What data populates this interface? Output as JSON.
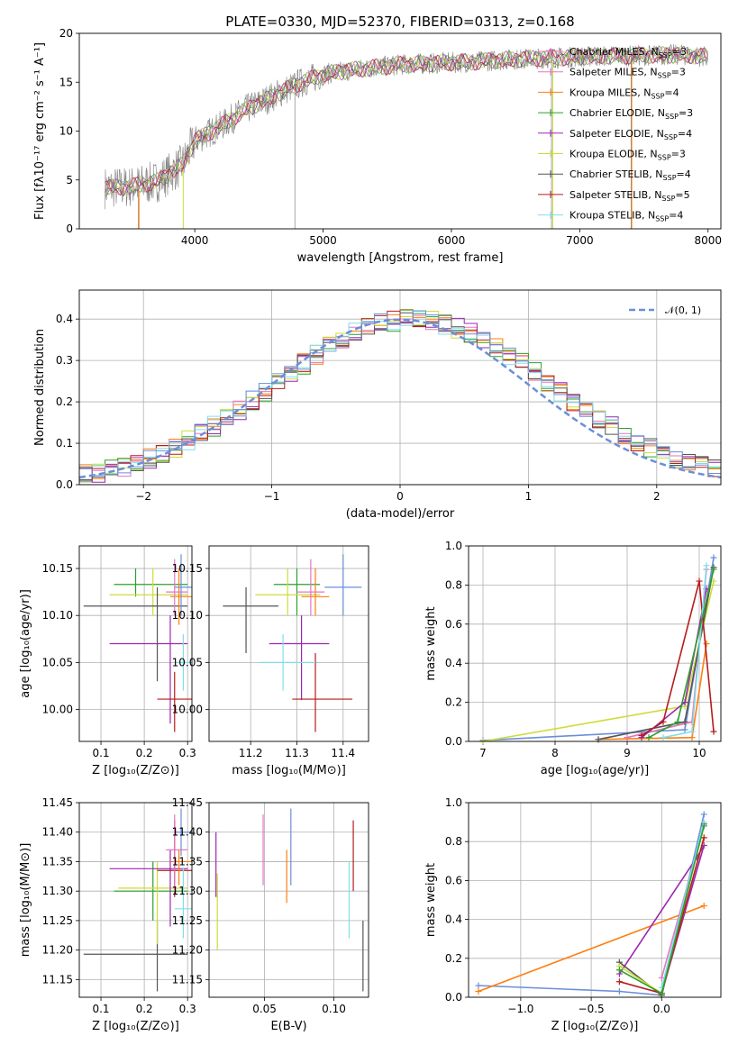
{
  "series_colors": [
    "#e24a33",
    "#348abd",
    "#988ed5",
    "#777777",
    "#fbc15e",
    "#8eba42",
    "#ffb5b8",
    "#1f77b4",
    "#ff7f0e",
    "#2ca02c"
  ],
  "palette": {
    "chabrier_miles": "#ff7f0e",
    "salpeter_miles": "#e377c2",
    "kroupa_miles": "#ff7f0e",
    "chabrier_elodie": "#2ca02c",
    "salpeter_elodie": "#9c27b0",
    "kroupa_elodie": "#cddc39",
    "chabrier_stelib": "#555555",
    "salpeter_stelib": "#b71c1c",
    "kroupa_stelib": "#80deea"
  },
  "chart_data": [
    {
      "id": "spectrum",
      "type": "line",
      "title": "PLATE=0330, MJD=52370, FIBERID=0313, z=0.168",
      "xlabel": "wavelength [Angstrom, rest frame]",
      "ylabel": "Flux [fλ10⁻¹⁷ erg cm⁻² s⁻¹ A⁻¹]",
      "xlim": [
        3100,
        8100
      ],
      "ylim": [
        0,
        20
      ],
      "xticks": [
        4000,
        5000,
        6000,
        7000,
        8000
      ],
      "yticks": [
        0,
        5,
        10,
        15,
        20
      ],
      "legend_position": "right",
      "legend": [
        {
          "label": "Chabrier MILES, N",
          "sub": "SSP",
          "suffix": "=3",
          "color": "#e377c2"
        },
        {
          "label": "Salpeter MILES, N",
          "sub": "SSP",
          "suffix": "=3",
          "color": "#e377c2"
        },
        {
          "label": "Kroupa MILES, N",
          "sub": "SSP",
          "suffix": "=4",
          "color": "#ff7f0e"
        },
        {
          "label": "Chabrier ELODIE, N",
          "sub": "SSP",
          "suffix": "=3",
          "color": "#2ca02c"
        },
        {
          "label": "Salpeter ELODIE, N",
          "sub": "SSP",
          "suffix": "=4",
          "color": "#9c27b0"
        },
        {
          "label": "Kroupa ELODIE, N",
          "sub": "SSP",
          "suffix": "=3",
          "color": "#cddc39"
        },
        {
          "label": "Chabrier STELIB, N",
          "sub": "SSP",
          "suffix": "=4",
          "color": "#555555"
        },
        {
          "label": "Salpeter STELIB, N",
          "sub": "SSP",
          "suffix": "=5",
          "color": "#b71c1c"
        },
        {
          "label": "Kroupa STELIB, N",
          "sub": "SSP",
          "suffix": "=4",
          "color": "#80deea"
        }
      ],
      "continuum": {
        "x": [
          3300,
          3500,
          3700,
          3900,
          4000,
          4200,
          4400,
          4600,
          4800,
          5000,
          5200,
          5400,
          5600,
          5800,
          6000,
          6200,
          6400,
          6600,
          6800,
          7000,
          7200,
          7400,
          7600,
          7800,
          8000
        ],
        "y": [
          4.2,
          4.3,
          4.8,
          6.5,
          9.0,
          10.5,
          12.2,
          13.5,
          14.8,
          15.8,
          16.2,
          16.5,
          16.8,
          16.9,
          17.0,
          17.1,
          17.3,
          17.4,
          17.5,
          17.6,
          17.7,
          17.7,
          17.8,
          17.8,
          17.6
        ]
      }
    },
    {
      "id": "residuals",
      "type": "histogram",
      "xlabel": "(data-model)/error",
      "ylabel": "Normed distribution",
      "xlim": [
        -2.5,
        2.5
      ],
      "ylim": [
        0,
        0.47
      ],
      "xticks": [
        -2,
        -1,
        0,
        1,
        2
      ],
      "yticks": [
        0.0,
        0.1,
        0.2,
        0.3,
        0.4
      ],
      "ytick_labels": [
        "0.0",
        "0.1",
        "0.2",
        "0.3",
        "0.4"
      ],
      "xtick_labels": [
        "−2",
        "−1",
        "0",
        "1",
        "2"
      ],
      "legend": [
        {
          "label": "𝒩(0, 1)",
          "color": "#6a8fd8",
          "style": "dashed"
        }
      ],
      "legend_position": "top-right",
      "bin_width": 0.1
    },
    {
      "id": "age-vs-z",
      "type": "errorbar",
      "xlabel": "Z [log₁₀(Z/Z⊙)]",
      "ylabel": "age  [log₁₀(age/yr)]",
      "xlim": [
        0.05,
        0.31
      ],
      "ylim": [
        9.966,
        10.174
      ],
      "xticks": [
        0.1,
        0.2,
        0.3
      ],
      "xtick_labels": [
        "0.1",
        "0.2",
        "0.3"
      ],
      "yticks": [
        10.0,
        10.05,
        10.1,
        10.15
      ],
      "ytick_labels": [
        "10.00",
        "10.05",
        "10.10",
        "10.15"
      ],
      "points": [
        {
          "x": 0.18,
          "y": 10.133,
          "xerr": [
            0.13,
            0.3
          ],
          "yerr": [
            10.12,
            10.15
          ],
          "color": "#2ca02c"
        },
        {
          "x": 0.22,
          "y": 10.122,
          "xerr": [
            0.12,
            0.3
          ],
          "yerr": [
            10.1,
            10.15
          ],
          "color": "#cddc39"
        },
        {
          "x": 0.23,
          "y": 10.11,
          "xerr": [
            0.06,
            0.3
          ],
          "yerr": [
            10.03,
            10.13
          ],
          "color": "#555555"
        },
        {
          "x": 0.26,
          "y": 10.07,
          "xerr": [
            0.12,
            0.3
          ],
          "yerr": [
            9.985,
            10.1
          ],
          "color": "#9c27b0"
        },
        {
          "x": 0.27,
          "y": 10.011,
          "xerr": [
            0.23,
            0.31
          ],
          "yerr": [
            9.976,
            10.04
          ],
          "color": "#b71c1c"
        },
        {
          "x": 0.28,
          "y": 10.12,
          "xerr": [
            0.26,
            0.31
          ],
          "yerr": [
            10.09,
            10.15
          ],
          "color": "#ff7f0e"
        },
        {
          "x": 0.29,
          "y": 10.05,
          "xerr": [
            0.27,
            0.31
          ],
          "yerr": [
            10.02,
            10.08
          ],
          "color": "#80deea"
        },
        {
          "x": 0.285,
          "y": 10.13,
          "xerr": [
            0.27,
            0.31
          ],
          "yerr": [
            10.1,
            10.165
          ],
          "color": "#6a8fd8"
        },
        {
          "x": 0.27,
          "y": 10.125,
          "xerr": [
            0.25,
            0.3
          ],
          "yerr": [
            10.1,
            10.16
          ],
          "color": "#e377c2"
        }
      ]
    },
    {
      "id": "age-vs-mass",
      "type": "errorbar",
      "xlabel": "mass [log₁₀(M/M⊙)]",
      "xlim": [
        11.11,
        11.455
      ],
      "ylim": [
        9.966,
        10.174
      ],
      "xticks": [
        11.2,
        11.3,
        11.4
      ],
      "xtick_labels": [
        "11.2",
        "11.3",
        "11.4"
      ],
      "yticks": [
        10.0,
        10.05,
        10.1,
        10.15
      ],
      "ytick_labels": [
        "10.00",
        "10.05",
        "10.10",
        "10.15"
      ],
      "points": [
        {
          "x": 11.3,
          "y": 10.133,
          "xerr": [
            11.25,
            11.35
          ],
          "yerr": [
            10.1,
            10.15
          ],
          "color": "#2ca02c"
        },
        {
          "x": 11.28,
          "y": 10.122,
          "xerr": [
            11.21,
            11.35
          ],
          "yerr": [
            10.1,
            10.15
          ],
          "color": "#cddc39"
        },
        {
          "x": 11.19,
          "y": 10.11,
          "xerr": [
            11.14,
            11.26
          ],
          "yerr": [
            10.06,
            10.13
          ],
          "color": "#555555"
        },
        {
          "x": 11.31,
          "y": 10.07,
          "xerr": [
            11.24,
            11.37
          ],
          "yerr": [
            10.01,
            10.1
          ],
          "color": "#9c27b0"
        },
        {
          "x": 11.34,
          "y": 10.011,
          "xerr": [
            11.29,
            11.42
          ],
          "yerr": [
            9.976,
            10.06
          ],
          "color": "#b71c1c"
        },
        {
          "x": 11.34,
          "y": 10.12,
          "xerr": [
            11.31,
            11.37
          ],
          "yerr": [
            10.1,
            10.15
          ],
          "color": "#ff7f0e"
        },
        {
          "x": 11.27,
          "y": 10.05,
          "xerr": [
            11.22,
            11.34
          ],
          "yerr": [
            10.02,
            10.08
          ],
          "color": "#80deea"
        },
        {
          "x": 11.4,
          "y": 10.13,
          "xerr": [
            11.36,
            11.44
          ],
          "yerr": [
            10.1,
            10.165
          ],
          "color": "#6a8fd8"
        },
        {
          "x": 11.33,
          "y": 10.125,
          "xerr": [
            11.3,
            11.36
          ],
          "yerr": [
            10.1,
            10.16
          ],
          "color": "#e377c2"
        }
      ]
    },
    {
      "id": "massweight-vs-age",
      "type": "line",
      "xlabel": "age  [log₁₀(age/yr)]",
      "ylabel": "mass weight",
      "xlim": [
        6.8,
        10.3
      ],
      "ylim": [
        0,
        1
      ],
      "xticks": [
        7,
        8,
        9,
        10
      ],
      "xtick_labels": [
        "7",
        "8",
        "9",
        "10"
      ],
      "yticks": [
        0.0,
        0.2,
        0.4,
        0.6,
        0.8,
        1.0
      ],
      "ytick_labels": [
        "0.0",
        "0.2",
        "0.4",
        "0.6",
        "0.8",
        "1.0"
      ],
      "series": [
        {
          "color": "#6a8fd8",
          "x": [
            7.0,
            9.8,
            10.2
          ],
          "y": [
            0.005,
            0.06,
            0.94
          ]
        },
        {
          "color": "#cddc39",
          "x": [
            7.0,
            9.8,
            10.2
          ],
          "y": [
            0.0,
            0.18,
            0.82
          ]
        },
        {
          "color": "#e377c2",
          "x": [
            9.0,
            9.9,
            10.1
          ],
          "y": [
            0.02,
            0.1,
            0.88
          ]
        },
        {
          "color": "#ff7f0e",
          "x": [
            8.6,
            9.9,
            10.1
          ],
          "y": [
            0.01,
            0.02,
            0.5
          ]
        },
        {
          "color": "#9c27b0",
          "x": [
            9.2,
            9.8,
            10.1
          ],
          "y": [
            0.02,
            0.2,
            0.78
          ]
        },
        {
          "color": "#555555",
          "x": [
            8.6,
            9.8,
            10.2
          ],
          "y": [
            0.01,
            0.1,
            0.89
          ]
        },
        {
          "color": "#b71c1c",
          "x": [
            9.2,
            9.5,
            10.0,
            10.2
          ],
          "y": [
            0.03,
            0.1,
            0.82,
            0.05
          ]
        },
        {
          "color": "#80deea",
          "x": [
            9.5,
            9.9,
            10.1
          ],
          "y": [
            0.02,
            0.05,
            0.9
          ]
        },
        {
          "color": "#2ca02c",
          "x": [
            9.3,
            9.7,
            10.2
          ],
          "y": [
            0.02,
            0.1,
            0.88
          ]
        }
      ]
    },
    {
      "id": "mass-vs-z",
      "type": "errorbar",
      "xlabel": "Z [log₁₀(Z/Z⊙)]",
      "ylabel": "mass [log₁₀(M/M⊙)]",
      "xlim": [
        0.05,
        0.31
      ],
      "ylim": [
        11.12,
        11.45
      ],
      "xticks": [
        0.1,
        0.2,
        0.3
      ],
      "xtick_labels": [
        "0.1",
        "0.2",
        "0.3"
      ],
      "yticks": [
        11.15,
        11.2,
        11.25,
        11.3,
        11.35,
        11.4,
        11.45
      ],
      "ytick_labels": [
        "11.15",
        "11.20",
        "11.25",
        "11.30",
        "11.35",
        "11.40",
        "11.45"
      ],
      "points": [
        {
          "x": 0.23,
          "y": 11.193,
          "xerr": [
            0.06,
            0.3
          ],
          "yerr": [
            11.13,
            11.25
          ],
          "color": "#555555"
        },
        {
          "x": 0.22,
          "y": 11.3,
          "xerr": [
            0.13,
            0.3
          ],
          "yerr": [
            11.25,
            11.35
          ],
          "color": "#2ca02c"
        },
        {
          "x": 0.23,
          "y": 11.305,
          "xerr": [
            0.14,
            0.3
          ],
          "yerr": [
            11.21,
            11.35
          ],
          "color": "#cddc39"
        },
        {
          "x": 0.26,
          "y": 11.338,
          "xerr": [
            0.12,
            0.3
          ],
          "yerr": [
            11.24,
            11.37
          ],
          "color": "#9c27b0"
        },
        {
          "x": 0.27,
          "y": 11.335,
          "xerr": [
            0.23,
            0.31
          ],
          "yerr": [
            11.29,
            11.42
          ],
          "color": "#b71c1c"
        },
        {
          "x": 0.28,
          "y": 11.35,
          "xerr": [
            0.26,
            0.31
          ],
          "yerr": [
            11.31,
            11.37
          ],
          "color": "#ff7f0e"
        },
        {
          "x": 0.29,
          "y": 11.27,
          "xerr": [
            0.27,
            0.31
          ],
          "yerr": [
            11.22,
            11.34
          ],
          "color": "#80deea"
        },
        {
          "x": 0.285,
          "y": 11.4,
          "xerr": [
            0.27,
            0.31
          ],
          "yerr": [
            11.36,
            11.44
          ],
          "color": "#6a8fd8"
        },
        {
          "x": 0.27,
          "y": 11.37,
          "xerr": [
            0.25,
            0.3
          ],
          "yerr": [
            11.3,
            11.43
          ],
          "color": "#e377c2"
        }
      ]
    },
    {
      "id": "mass-vs-ebv",
      "type": "errorbar",
      "xlabel": "E(B-V)",
      "xlim": [
        0.01,
        0.125
      ],
      "ylim": [
        11.12,
        11.45
      ],
      "xticks": [
        0.05,
        0.1
      ],
      "xtick_labels": [
        "0.05",
        "0.10"
      ],
      "yticks": [
        11.15,
        11.2,
        11.25,
        11.3,
        11.35,
        11.4,
        11.45
      ],
      "ytick_labels": [
        "11.15",
        "11.20",
        "11.25",
        "11.30",
        "11.35",
        "11.40",
        "11.45"
      ],
      "points": [
        {
          "x": 0.015,
          "y": 11.34,
          "yerr": [
            11.29,
            11.4
          ],
          "color": "#9c27b0"
        },
        {
          "x": 0.016,
          "y": 11.26,
          "yerr": [
            11.2,
            11.33
          ],
          "color": "#cddc39"
        },
        {
          "x": 0.049,
          "y": 11.37,
          "yerr": [
            11.31,
            11.43
          ],
          "color": "#e377c2"
        },
        {
          "x": 0.066,
          "y": 11.33,
          "yerr": [
            11.28,
            11.37
          ],
          "color": "#ff7f0e"
        },
        {
          "x": 0.069,
          "y": 11.38,
          "yerr": [
            11.31,
            11.44
          ],
          "color": "#6a8fd8"
        },
        {
          "x": 0.111,
          "y": 11.29,
          "yerr": [
            11.22,
            11.35
          ],
          "color": "#80deea"
        },
        {
          "x": 0.114,
          "y": 11.36,
          "yerr": [
            11.3,
            11.42
          ],
          "color": "#b71c1c"
        },
        {
          "x": 0.121,
          "y": 11.19,
          "yerr": [
            11.13,
            11.25
          ],
          "color": "#555555"
        }
      ]
    },
    {
      "id": "massweight-vs-z",
      "type": "line",
      "xlabel": "Z [log₁₀(Z/Z⊙)]",
      "ylabel": "mass weight",
      "xlim": [
        -1.37,
        0.42
      ],
      "ylim": [
        0,
        1
      ],
      "xticks": [
        -1.0,
        -0.5,
        0.0
      ],
      "xtick_labels": [
        "−1.0",
        "−0.5",
        "0.0"
      ],
      "yticks": [
        0.0,
        0.2,
        0.4,
        0.6,
        0.8,
        1.0
      ],
      "ytick_labels": [
        "0.0",
        "0.2",
        "0.4",
        "0.6",
        "0.8",
        "1.0"
      ],
      "series": [
        {
          "color": "#6a8fd8",
          "x": [
            -1.3,
            -0.3,
            0.0,
            0.3
          ],
          "y": [
            0.06,
            0.03,
            0.01,
            0.94
          ]
        },
        {
          "color": "#ff7f0e",
          "x": [
            -1.3,
            0.3
          ],
          "y": [
            0.03,
            0.47
          ]
        },
        {
          "color": "#9c27b0",
          "x": [
            -0.3,
            0.25,
            0.3,
            0.0
          ],
          "y": [
            0.12,
            0.72,
            0.78,
            0.02
          ]
        },
        {
          "color": "#555555",
          "x": [
            -0.3,
            0.0,
            0.3
          ],
          "y": [
            0.18,
            0.01,
            0.89
          ]
        },
        {
          "color": "#cddc39",
          "x": [
            -0.3,
            0.0,
            0.3
          ],
          "y": [
            0.16,
            0.02,
            0.82
          ]
        },
        {
          "color": "#e377c2",
          "x": [
            0.0,
            0.3
          ],
          "y": [
            0.1,
            0.88
          ]
        },
        {
          "color": "#b71c1c",
          "x": [
            -0.3,
            0.0,
            0.3
          ],
          "y": [
            0.08,
            0.02,
            0.82
          ]
        },
        {
          "color": "#80deea",
          "x": [
            0.0,
            0.3
          ],
          "y": [
            0.05,
            0.9
          ]
        },
        {
          "color": "#2ca02c",
          "x": [
            -0.3,
            0.0,
            0.3
          ],
          "y": [
            0.14,
            0.02,
            0.88
          ]
        }
      ]
    }
  ]
}
